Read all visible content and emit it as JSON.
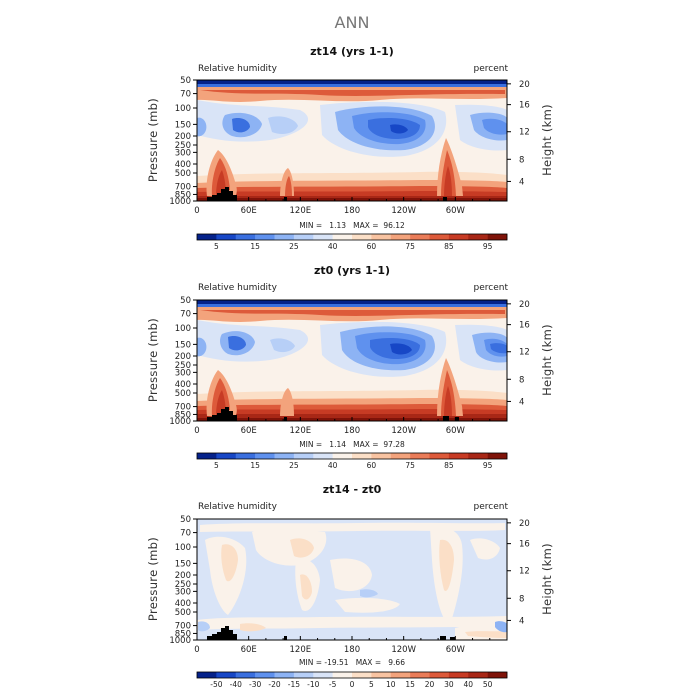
{
  "figure_title": "ANN",
  "panels": [
    {
      "title": "zt14 (yrs 1-1)",
      "left_label": "Relative humidity",
      "right_label": "percent",
      "ylabel": "Pressure (mb)",
      "y2label": "Height (km)",
      "x_ticks": [
        "0",
        "60E",
        "120E",
        "180",
        "120W",
        "60W"
      ],
      "p_ticks": [
        "50",
        "70",
        "100",
        "150",
        "200",
        "250",
        "300",
        "400",
        "500",
        "700",
        "850",
        "1000"
      ],
      "h_ticks": [
        "20",
        "16",
        "12",
        "8",
        "4"
      ],
      "minmax_text": "MIN =   1.13   MAX =  96.12",
      "colorbar_labels": [
        "5",
        "15",
        "25",
        "40",
        "60",
        "75",
        "85",
        "95"
      ],
      "colorbar_colors": [
        "#05228a",
        "#1747c6",
        "#3a6fdf",
        "#5f91ee",
        "#8db3f4",
        "#b7cff7",
        "#d9e4f7",
        "#faf2ea",
        "#fbdfc7",
        "#f8c3a1",
        "#f3a37c",
        "#ea7c58",
        "#dd5a3a",
        "#c73b24",
        "#a82716",
        "#7f1309"
      ]
    },
    {
      "title": "zt0 (yrs 1-1)",
      "left_label": "Relative humidity",
      "right_label": "percent",
      "ylabel": "Pressure (mb)",
      "y2label": "Height (km)",
      "x_ticks": [
        "0",
        "60E",
        "120E",
        "180",
        "120W",
        "60W"
      ],
      "p_ticks": [
        "50",
        "70",
        "100",
        "150",
        "200",
        "250",
        "300",
        "400",
        "500",
        "700",
        "850",
        "1000"
      ],
      "h_ticks": [
        "20",
        "16",
        "12",
        "8",
        "4"
      ],
      "minmax_text": "MIN =   1.14   MAX =  97.28",
      "colorbar_labels": [
        "5",
        "15",
        "25",
        "40",
        "60",
        "75",
        "85",
        "95"
      ],
      "colorbar_colors": [
        "#05228a",
        "#1747c6",
        "#3a6fdf",
        "#5f91ee",
        "#8db3f4",
        "#b7cff7",
        "#d9e4f7",
        "#faf2ea",
        "#fbdfc7",
        "#f8c3a1",
        "#f3a37c",
        "#ea7c58",
        "#dd5a3a",
        "#c73b24",
        "#a82716",
        "#7f1309"
      ]
    },
    {
      "title": "zt14 - zt0",
      "left_label": "Relative humidity",
      "right_label": "percent",
      "ylabel": "Pressure (mb)",
      "y2label": "Height (km)",
      "x_ticks": [
        "0",
        "60E",
        "120E",
        "180",
        "120W",
        "60W"
      ],
      "p_ticks": [
        "50",
        "70",
        "100",
        "150",
        "200",
        "250",
        "300",
        "400",
        "500",
        "700",
        "850",
        "1000"
      ],
      "h_ticks": [
        "20",
        "16",
        "12",
        "8",
        "4"
      ],
      "minmax_text": "MIN = -19.51   MAX =   9.66",
      "colorbar_labels": [
        "-50",
        "-40",
        "-30",
        "-20",
        "-15",
        "-10",
        "-5",
        "0",
        "5",
        "10",
        "15",
        "20",
        "30",
        "40",
        "50"
      ],
      "colorbar_colors": [
        "#05228a",
        "#1747c6",
        "#3a6fdf",
        "#5f91ee",
        "#8db3f4",
        "#b7cff7",
        "#d9e4f7",
        "#faf2ea",
        "#fbdfc7",
        "#f8c3a1",
        "#f3a37c",
        "#ea7c58",
        "#dd5a3a",
        "#c73b24",
        "#a82716",
        "#7f1309"
      ]
    }
  ],
  "chart_data": [
    {
      "type": "heatmap",
      "title": "zt14 (yrs 1-1)",
      "xlabel": "",
      "ylabel": "Pressure (mb)",
      "y2label": "Height (km)",
      "x_ticks": [
        "0",
        "60E",
        "120E",
        "180",
        "120W",
        "60W"
      ],
      "y_ticks": [
        50,
        70,
        100,
        150,
        200,
        250,
        300,
        400,
        500,
        700,
        850,
        1000
      ],
      "y_scale": "log",
      "y_reversed": true,
      "ylim": [
        1000,
        50
      ],
      "y2_ticks": [
        20,
        16,
        12,
        8,
        4
      ],
      "levels": [
        5,
        15,
        25,
        40,
        60,
        75,
        85,
        95
      ],
      "min": 1.13,
      "max": 96.12,
      "units": "percent"
    },
    {
      "type": "heatmap",
      "title": "zt0 (yrs 1-1)",
      "xlabel": "",
      "ylabel": "Pressure (mb)",
      "y2label": "Height (km)",
      "x_ticks": [
        "0",
        "60E",
        "120E",
        "180",
        "120W",
        "60W"
      ],
      "y_ticks": [
        50,
        70,
        100,
        150,
        200,
        250,
        300,
        400,
        500,
        700,
        850,
        1000
      ],
      "y_scale": "log",
      "y_reversed": true,
      "ylim": [
        1000,
        50
      ],
      "y2_ticks": [
        20,
        16,
        12,
        8,
        4
      ],
      "levels": [
        5,
        15,
        25,
        40,
        60,
        75,
        85,
        95
      ],
      "min": 1.14,
      "max": 97.28,
      "units": "percent"
    },
    {
      "type": "heatmap",
      "title": "zt14 - zt0",
      "xlabel": "",
      "ylabel": "Pressure (mb)",
      "y2label": "Height (km)",
      "x_ticks": [
        "0",
        "60E",
        "120E",
        "180",
        "120W",
        "60W"
      ],
      "y_ticks": [
        50,
        70,
        100,
        150,
        200,
        250,
        300,
        400,
        500,
        700,
        850,
        1000
      ],
      "y_scale": "log",
      "y_reversed": true,
      "ylim": [
        1000,
        50
      ],
      "y2_ticks": [
        20,
        16,
        12,
        8,
        4
      ],
      "levels": [
        -50,
        -40,
        -30,
        -20,
        -15,
        -10,
        -5,
        0,
        5,
        10,
        15,
        20,
        30,
        40,
        50
      ],
      "min": -19.51,
      "max": 9.66,
      "units": "percent"
    }
  ]
}
